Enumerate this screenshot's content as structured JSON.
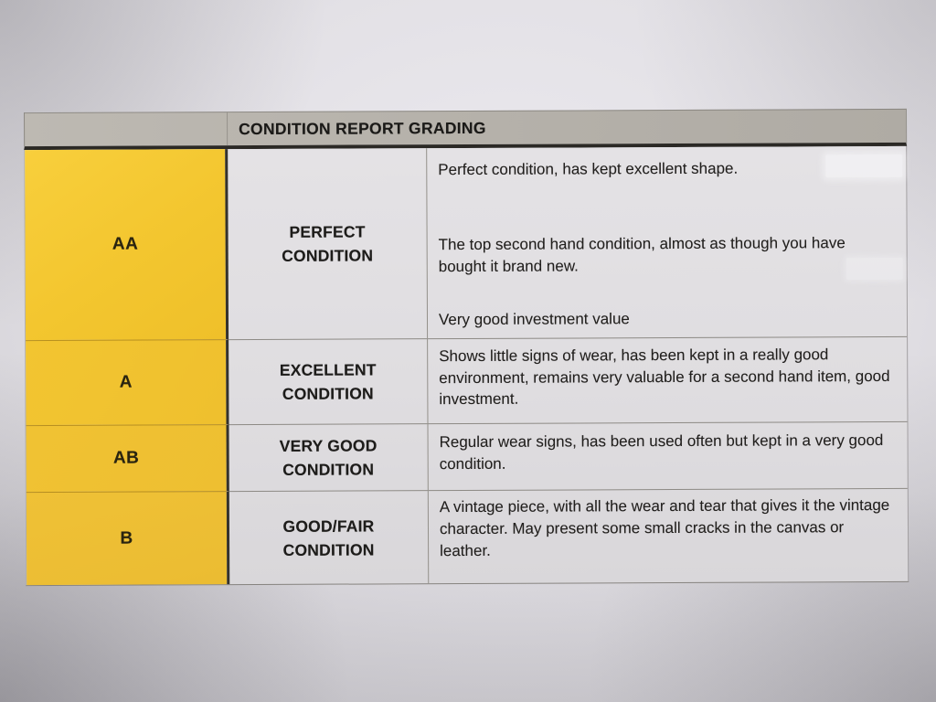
{
  "table": {
    "header": {
      "title": "CONDITION REPORT GRADING"
    },
    "columns": [
      "grade",
      "condition",
      "description"
    ],
    "rows": [
      {
        "grade": "AA",
        "condition": "PERFECT\nCONDITION",
        "descriptions": [
          "Perfect condition, has kept excellent shape.",
          "The top second hand condition, almost as though you have bought it brand new.",
          "Very good investment value"
        ]
      },
      {
        "grade": "A",
        "condition": "EXCELLENT\nCONDITION",
        "descriptions": [
          "Shows little signs of wear, has been kept in a really good environment, remains very valuable for a second hand item, good investment."
        ]
      },
      {
        "grade": "AB",
        "condition": "VERY GOOD\nCONDITION",
        "descriptions": [
          "Regular wear signs, has been used often but kept in a very good condition."
        ]
      },
      {
        "grade": "B",
        "condition": "GOOD/FAIR\nCONDITION",
        "descriptions": [
          "A vintage piece, with all the wear and tear that gives it the vintage character. May present some small cracks in the canvas or leather."
        ]
      }
    ],
    "colors": {
      "grade_cell_yellow": "#F2C42E",
      "header_bar_gray": "#B5B1AA",
      "cell_background": "#E0DEE1",
      "ink": "#201F1C"
    }
  }
}
